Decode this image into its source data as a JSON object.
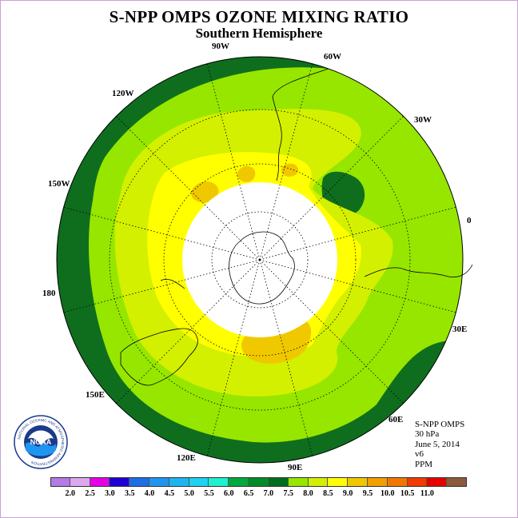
{
  "title": "S-NPP OMPS OZONE MIXING RATIO",
  "subtitle": "Southern Hemisphere",
  "longitude_labels": [
    {
      "text": "90W"
    },
    {
      "text": "60W"
    },
    {
      "text": "120W"
    },
    {
      "text": "30W"
    },
    {
      "text": "150W"
    },
    {
      "text": "0"
    },
    {
      "text": "180"
    },
    {
      "text": "30E"
    },
    {
      "text": "150E"
    },
    {
      "text": "60E"
    },
    {
      "text": "120E"
    },
    {
      "text": "90E"
    }
  ],
  "info": {
    "instrument": "S-NPP OMPS",
    "level": "30 hPa",
    "date": "June 5, 2014",
    "version": "v6",
    "units": "PPM"
  },
  "colorbar": {
    "ticks": [
      "2.0",
      "2.5",
      "3.0",
      "3.5",
      "4.0",
      "4.5",
      "5.0",
      "5.5",
      "6.0",
      "6.5",
      "7.0",
      "7.5",
      "8.0",
      "8.5",
      "9.0",
      "9.5",
      "10.0",
      "10.5",
      "11.0"
    ],
    "colors": [
      "#b57ae6",
      "#dda8ee",
      "#e600e6",
      "#1e00d2",
      "#1e6ee6",
      "#1e96f0",
      "#1eb4f0",
      "#1ed2f0",
      "#1ef0d2",
      "#00aa3c",
      "#008c28",
      "#006e1e",
      "#96e600",
      "#d2f000",
      "#ffff00",
      "#f0c800",
      "#f0a000",
      "#f07800",
      "#f03c00",
      "#e60000",
      "#8c5a3c"
    ]
  },
  "logo": {
    "text": "NOAA",
    "ring_text": "NATIONAL OCEANIC AND ATMOSPHERIC ADMINISTRATION"
  },
  "map_colors": {
    "dark_green": "#0f6e1e",
    "light_green": "#96e600",
    "yellow_green": "#d2f000",
    "yellow": "#ffff00",
    "orange": "#f0c800",
    "no_data": "#ffffff"
  }
}
